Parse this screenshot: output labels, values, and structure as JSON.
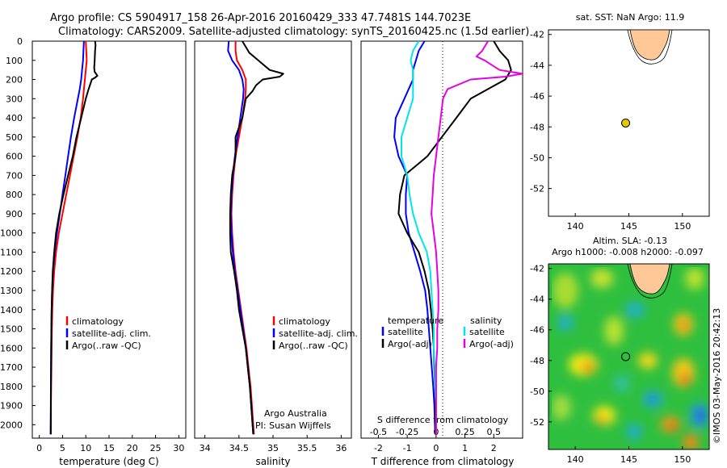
{
  "header": {
    "title_line1": "Argo profile: CS 5904917_158 26-Apr-2016 20160429_333 47.7481S 144.7023E",
    "title_line2": "Climatology: CARS2009. Satellite-adjusted climatology: synTS_20160425.nc (1.5d earlier)"
  },
  "credit": {
    "line1": "Argo Australia",
    "line2": "PI: Susan Wijffels",
    "stamp": "©IMOS 03-May-2016 20:42:13"
  },
  "colors": {
    "climatology": "#ff0000",
    "satellite": "#0000ff",
    "argo": "#000000",
    "satellite_salinity": "#00e6e6",
    "argo_salinity_adj": "#e600e6",
    "land": "#ffc896",
    "marker": "#e6c800"
  },
  "depth_axis": {
    "ticks": [
      0,
      100,
      200,
      300,
      400,
      500,
      600,
      700,
      800,
      900,
      1000,
      1100,
      1200,
      1300,
      1400,
      1500,
      1600,
      1700,
      1800,
      1900,
      2000
    ],
    "range": [
      0,
      2070
    ]
  },
  "chart_data": [
    {
      "type": "line",
      "panel": "temperature",
      "xlabel": "temperature (deg C)",
      "xticks": [
        0,
        5,
        10,
        15,
        20,
        25,
        30
      ],
      "xlim": [
        -1.5,
        31.5
      ],
      "legend": [
        "climatology",
        "satellite-adj. clim.",
        "Argo(..raw -QC)"
      ],
      "series": [
        {
          "name": "climatology",
          "color": "#ff0000",
          "depth": [
            0,
            50,
            100,
            150,
            200,
            250,
            300,
            400,
            500,
            600,
            700,
            800,
            900,
            1000,
            1100,
            1200,
            1300,
            1400,
            1500,
            1600,
            1700,
            1800,
            1900,
            2000,
            2050
          ],
          "values": [
            10.0,
            10.1,
            10.2,
            10.0,
            9.8,
            9.6,
            9.4,
            8.9,
            8.2,
            7.4,
            6.6,
            5.8,
            5.0,
            4.2,
            3.6,
            3.2,
            2.95,
            2.8,
            2.7,
            2.65,
            2.6,
            2.55,
            2.5,
            2.48,
            2.45
          ]
        },
        {
          "name": "satellite-adj. clim.",
          "color": "#0000ff",
          "depth": [
            0,
            50,
            100,
            150,
            200,
            250,
            300,
            400,
            500,
            600,
            700,
            800,
            900,
            1000,
            1100,
            1200,
            1300,
            1400,
            1500,
            1600,
            1700,
            1800,
            1900,
            2000,
            2050
          ],
          "values": [
            9.6,
            9.5,
            9.4,
            9.2,
            9.0,
            8.7,
            8.3,
            7.5,
            6.8,
            6.2,
            5.6,
            5.0,
            4.4,
            3.8,
            3.3,
            2.95,
            2.75,
            2.65,
            2.6,
            2.55,
            2.52,
            2.5,
            2.48,
            2.46,
            2.45
          ]
        },
        {
          "name": "Argo(..raw -QC)",
          "color": "#000000",
          "depth": [
            0,
            20,
            50,
            100,
            140,
            160,
            180,
            190,
            200,
            250,
            300,
            400,
            500,
            600,
            700,
            800,
            900,
            1000,
            1100,
            1200,
            1300,
            1400,
            1500,
            1600,
            1700,
            1800,
            1900,
            2000,
            2050
          ],
          "values": [
            12.0,
            12.1,
            12.0,
            11.9,
            11.8,
            11.9,
            12.5,
            12.0,
            11.3,
            10.6,
            10.0,
            9.0,
            8.0,
            7.2,
            6.2,
            5.2,
            4.3,
            3.6,
            3.2,
            2.9,
            2.75,
            2.65,
            2.6,
            2.57,
            2.55,
            2.52,
            2.5,
            2.48,
            2.47
          ]
        }
      ]
    },
    {
      "type": "line",
      "panel": "salinity",
      "xlabel": "salinity",
      "xticks": [
        34,
        34.5,
        35,
        35.5,
        36
      ],
      "xlim": [
        33.85,
        36.15
      ],
      "legend": [
        "climatology",
        "satellite-adj. clim.",
        "Argo(..raw -QC)"
      ],
      "series": [
        {
          "name": "climatology",
          "color": "#ff0000",
          "depth": [
            0,
            50,
            100,
            150,
            200,
            250,
            300,
            400,
            500,
            600,
            700,
            800,
            900,
            1000,
            1100,
            1200,
            1300,
            1400,
            1500,
            1600,
            1700,
            1800,
            1900,
            2000,
            2050
          ],
          "values": [
            34.45,
            34.45,
            34.47,
            34.55,
            34.6,
            34.6,
            34.59,
            34.55,
            34.5,
            34.45,
            34.42,
            34.4,
            34.39,
            34.4,
            34.42,
            34.45,
            34.49,
            34.53,
            34.57,
            34.61,
            34.64,
            34.67,
            34.69,
            34.71,
            34.72
          ]
        },
        {
          "name": "satellite-adj. clim.",
          "color": "#0000ff",
          "depth": [
            0,
            50,
            100,
            150,
            200,
            250,
            300,
            400,
            500,
            600,
            700,
            800,
            900,
            1000,
            1100,
            1200,
            1300,
            1400,
            1500,
            1600,
            1700,
            1800,
            1900,
            2000,
            2050
          ],
          "values": [
            34.35,
            34.34,
            34.4,
            34.5,
            34.55,
            34.57,
            34.56,
            34.52,
            34.48,
            34.44,
            34.41,
            34.39,
            34.38,
            34.39,
            34.41,
            34.44,
            34.48,
            34.52,
            34.56,
            34.6,
            34.63,
            34.66,
            34.68,
            34.7,
            34.71
          ]
        },
        {
          "name": "Argo(..raw -QC)",
          "color": "#000000",
          "depth": [
            0,
            30,
            60,
            90,
            120,
            150,
            170,
            185,
            200,
            230,
            260,
            300,
            400,
            500,
            600,
            700,
            800,
            900,
            1000,
            1100,
            1200,
            1300,
            1400,
            1500,
            1600,
            1700,
            1800,
            1900,
            2000,
            2050
          ],
          "values": [
            34.55,
            34.6,
            34.65,
            34.75,
            34.85,
            34.95,
            35.15,
            35.1,
            34.85,
            34.75,
            34.7,
            34.6,
            34.55,
            34.45,
            34.45,
            34.4,
            34.38,
            34.37,
            34.37,
            34.38,
            34.43,
            34.47,
            34.5,
            34.55,
            34.6,
            34.63,
            34.66,
            34.68,
            34.7,
            34.71
          ]
        }
      ]
    },
    {
      "type": "line",
      "panel": "difference",
      "xlabel": "T difference from climatology",
      "xlabel_top": "S difference from climatology",
      "xticks": [
        -2,
        -1,
        0,
        1,
        2
      ],
      "xlim": [
        -2.6,
        3.0
      ],
      "sticks": [
        "-0.5",
        "-0.25",
        "0",
        "0.25",
        "0.5"
      ],
      "legend_temperature_title": "temperature",
      "legend_salinity_title": "salinity",
      "legend": [
        "satellite",
        "Argo(-adj)",
        "satellite",
        "Argo(-adj)"
      ],
      "series": [
        {
          "name": "satellite",
          "group": "temperature",
          "color": "#0000ff",
          "depth": [
            0,
            50,
            100,
            150,
            200,
            300,
            400,
            500,
            600,
            700,
            800,
            900,
            1000,
            1100,
            1200,
            1300,
            1400,
            1500,
            1600,
            1700,
            1800,
            1900,
            2000,
            2050
          ],
          "values": [
            -0.4,
            -0.6,
            -0.7,
            -0.8,
            -0.8,
            -1.1,
            -1.4,
            -1.45,
            -1.3,
            -1.0,
            -1.05,
            -1.05,
            -0.95,
            -0.75,
            -0.55,
            -0.38,
            -0.3,
            -0.25,
            -0.2,
            -0.15,
            -0.1,
            -0.06,
            -0.04,
            -0.03
          ]
        },
        {
          "name": "Argo(-adj)",
          "group": "temperature",
          "color": "#000000",
          "depth": [
            0,
            50,
            100,
            150,
            200,
            250,
            300,
            400,
            500,
            600,
            650,
            700,
            800,
            900,
            1000,
            1100,
            1200,
            1300,
            1400,
            1500,
            1600,
            1700,
            1800,
            1900,
            2000,
            2050
          ],
          "values": [
            2.0,
            2.2,
            2.5,
            2.6,
            2.4,
            1.8,
            1.2,
            0.7,
            0.2,
            -0.3,
            -0.7,
            -1.1,
            -1.25,
            -1.3,
            -1.0,
            -0.6,
            -0.4,
            -0.25,
            -0.18,
            -0.12,
            -0.08,
            -0.06,
            -0.04,
            -0.03,
            -0.02,
            -0.02
          ]
        },
        {
          "name": "satellite",
          "group": "salinity",
          "color": "#00e6e6",
          "depth": [
            0,
            50,
            100,
            150,
            200,
            300,
            400,
            500,
            600,
            700,
            800,
            900,
            1000,
            1100,
            1200,
            1300,
            1400,
            1500,
            1600,
            1700,
            1800,
            1900,
            2000,
            2050
          ],
          "values": [
            -0.15,
            -0.2,
            -0.22,
            -0.2,
            -0.2,
            -0.2,
            -0.25,
            -0.3,
            -0.3,
            -0.25,
            -0.23,
            -0.2,
            -0.15,
            -0.08,
            -0.05,
            -0.04,
            -0.03,
            -0.02,
            -0.02,
            -0.01,
            -0.01,
            0.0,
            0.0,
            0.0
          ]
        },
        {
          "name": "Argo(-adj)",
          "group": "salinity",
          "color": "#e600e6",
          "depth": [
            0,
            50,
            80,
            100,
            150,
            170,
            185,
            200,
            250,
            300,
            400,
            500,
            600,
            700,
            800,
            900,
            1000,
            1100,
            1200,
            1300,
            1400,
            1500,
            1600,
            1700,
            1800,
            1900,
            2000,
            2050
          ],
          "values": [
            0.45,
            0.4,
            0.35,
            0.42,
            0.55,
            0.75,
            0.6,
            0.3,
            0.1,
            0.06,
            0.04,
            0.02,
            0.0,
            -0.02,
            -0.03,
            -0.04,
            -0.02,
            0.0,
            0.01,
            0.02,
            0.02,
            0.01,
            0.01,
            0.0,
            0.0,
            0.0,
            0.0,
            0.0
          ]
        }
      ]
    },
    {
      "type": "scatter",
      "panel": "sst_map",
      "title": "sat. SST: NaN Argo: 11.9",
      "xticks": [
        140,
        145,
        150
      ],
      "yticks": [
        -42,
        -44,
        -46,
        -48,
        -50,
        -52
      ],
      "xlim": [
        137.5,
        152.5
      ],
      "ylim": [
        -53.8,
        -41.7
      ],
      "points": [
        {
          "lon": 144.7023,
          "lat": -47.7481
        }
      ]
    },
    {
      "type": "heatmap",
      "panel": "sla_map",
      "title_line1": "Altim. SLA: -0.13",
      "title_line2": "Argo h1000: -0.008 h2000: -0.097",
      "xticks": [
        140,
        145,
        150
      ],
      "yticks": [
        -42,
        -44,
        -46,
        -48,
        -50,
        -52
      ],
      "xlim": [
        137.5,
        152.5
      ],
      "ylim": [
        -53.8,
        -41.7
      ],
      "points": [
        {
          "lon": 144.7023,
          "lat": -47.7481
        }
      ]
    }
  ]
}
